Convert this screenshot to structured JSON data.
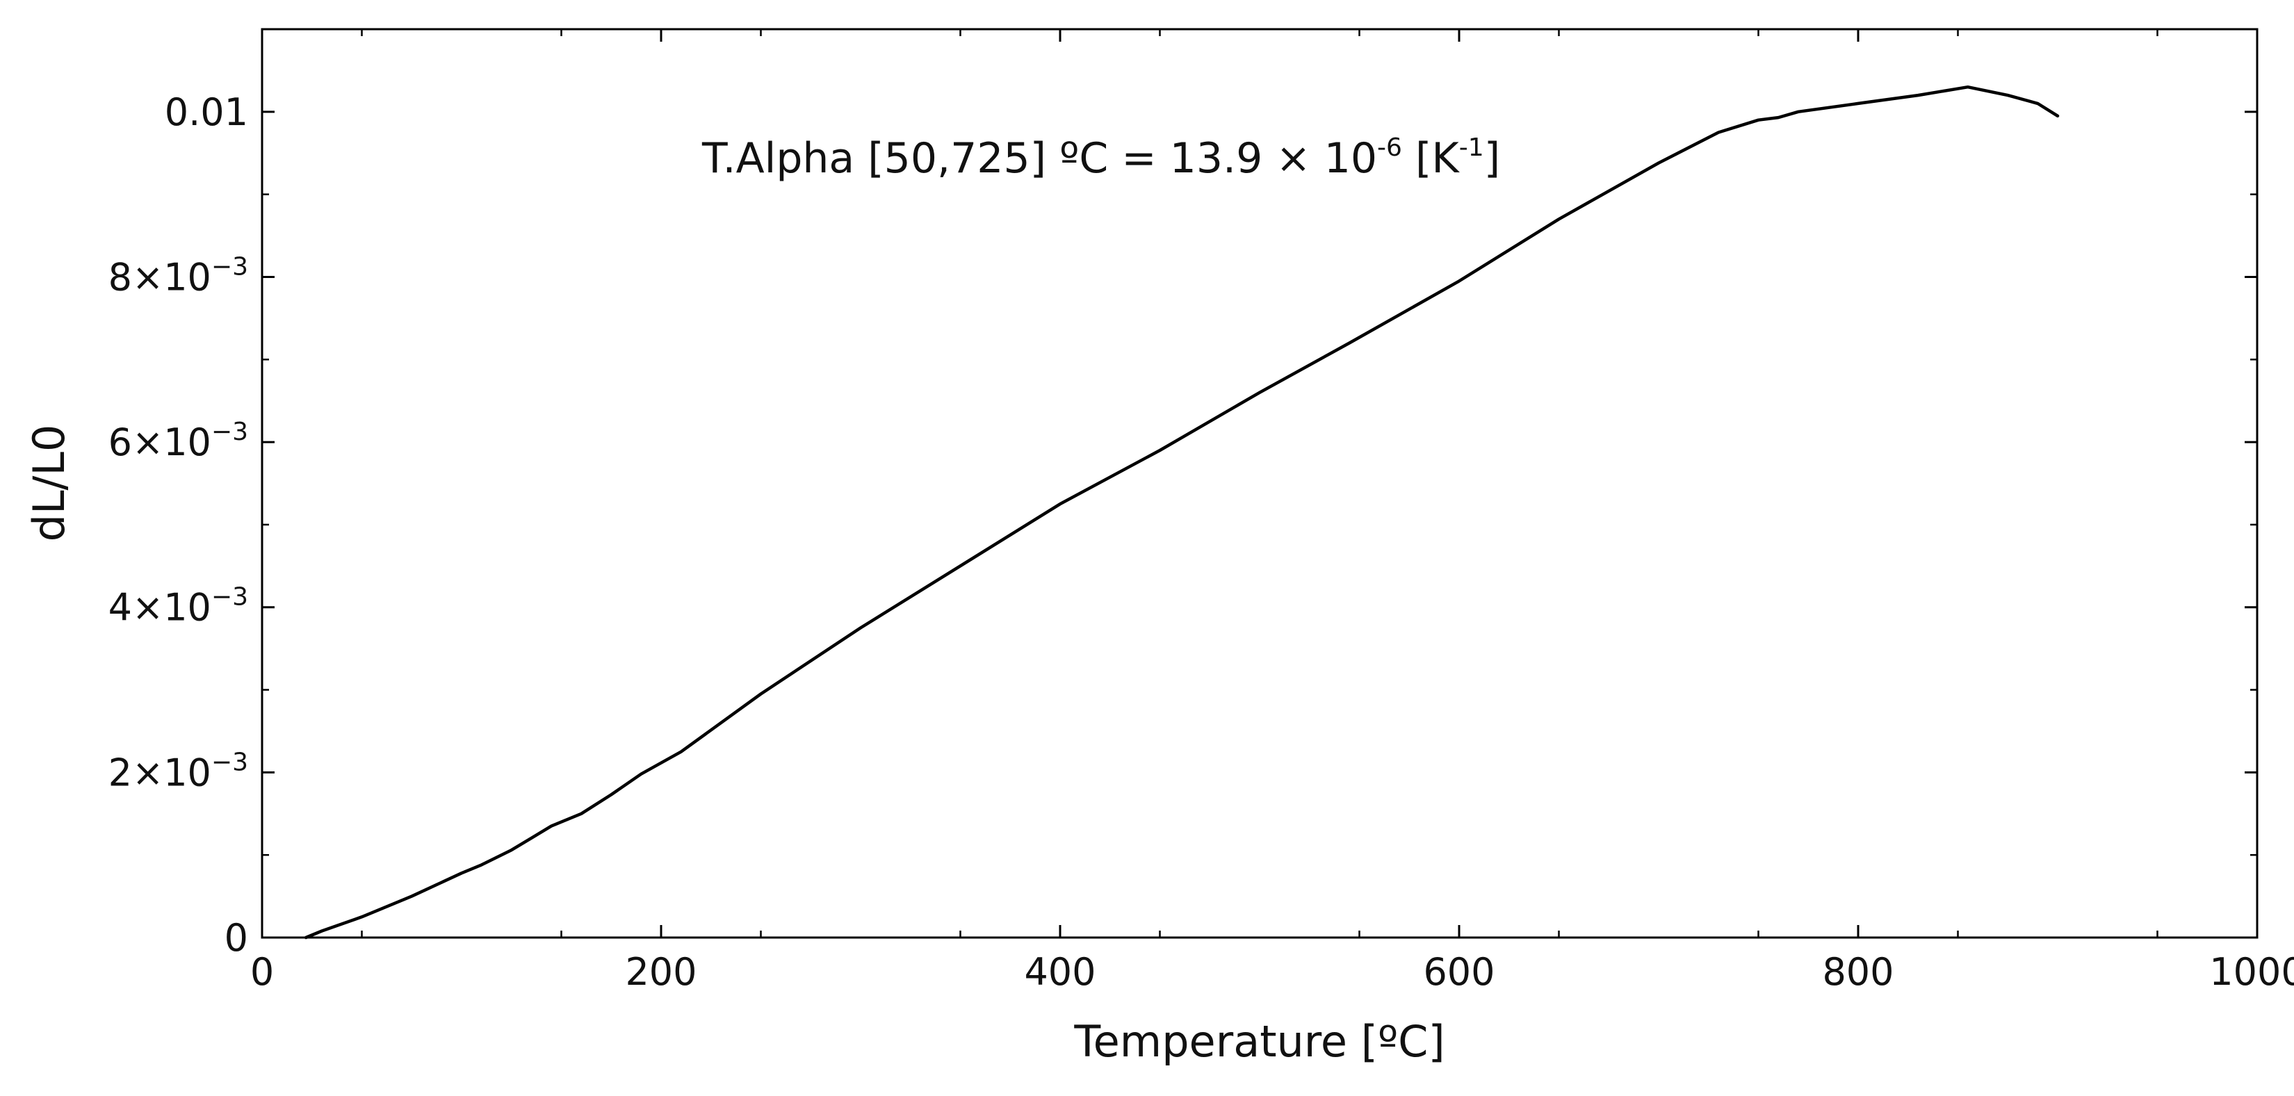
{
  "chart_data": {
    "type": "line",
    "xlabel": "Temperature [ºC]",
    "ylabel": "dL/L0",
    "xlim": [
      0,
      1000
    ],
    "ylim": [
      0,
      0.011
    ],
    "x_ticks": [
      {
        "value": 0,
        "label": "0"
      },
      {
        "value": 200,
        "label": "200"
      },
      {
        "value": 400,
        "label": "400"
      },
      {
        "value": 600,
        "label": "600"
      },
      {
        "value": 800,
        "label": "800"
      },
      {
        "value": 1000,
        "label": "1000"
      }
    ],
    "y_ticks": [
      {
        "value": 0,
        "label": "0",
        "mantissa": "",
        "exponent": ""
      },
      {
        "value": 0.002,
        "label": "2×10−3",
        "mantissa": "2×10",
        "exponent": "−3"
      },
      {
        "value": 0.004,
        "label": "4×10−3",
        "mantissa": "4×10",
        "exponent": "−3"
      },
      {
        "value": 0.006,
        "label": "6×10−3",
        "mantissa": "6×10",
        "exponent": "−3"
      },
      {
        "value": 0.008,
        "label": "8×10−3",
        "mantissa": "8×10",
        "exponent": "−3"
      },
      {
        "value": 0.01,
        "label": "0.01",
        "mantissa": "",
        "exponent": ""
      }
    ],
    "annotation": {
      "text": "T.Alpha [50,725] ºC = 13.9 × 10-6 [K-1]",
      "part1": "T.Alpha [50,725] ºC = 13.9 × 10",
      "exp1": "-6",
      "part2": " [K",
      "exp2": "-1",
      "part3": "]"
    },
    "grid": false,
    "legend": "none",
    "series": [
      {
        "color": "#000000",
        "x": [
          22,
          30,
          50,
          75,
          100,
          110,
          125,
          145,
          160,
          175,
          190,
          210,
          250,
          300,
          350,
          400,
          450,
          500,
          545,
          600,
          650,
          700,
          730,
          750,
          760,
          770,
          800,
          830,
          855,
          875,
          890,
          900
        ],
        "y": [
          0,
          8e-05,
          0.00025,
          0.0005,
          0.00078,
          0.00088,
          0.00106,
          0.00135,
          0.0015,
          0.00173,
          0.00198,
          0.00225,
          0.00295,
          0.00375,
          0.0045,
          0.00525,
          0.0059,
          0.0066,
          0.0072,
          0.00795,
          0.0087,
          0.00938,
          0.00975,
          0.0099,
          0.00993,
          0.01,
          0.0101,
          0.0102,
          0.0103,
          0.0102,
          0.0101,
          0.00995
        ]
      }
    ]
  }
}
